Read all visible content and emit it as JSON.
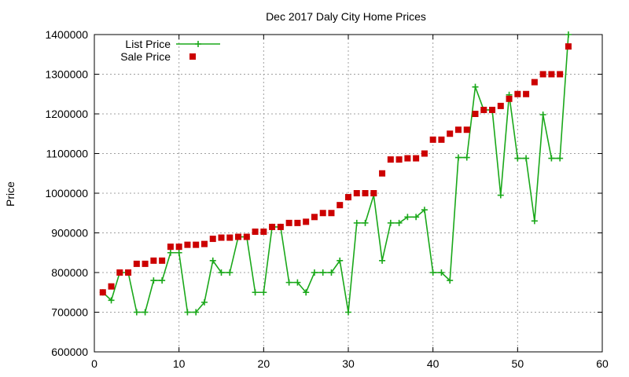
{
  "chart_data": {
    "type": "line",
    "title": "Dec 2017 Daly City Home Prices",
    "xlabel": "",
    "ylabel": "Price",
    "xlim": [
      0,
      60
    ],
    "ylim": [
      600000,
      1400000
    ],
    "xticks": [
      "0",
      "10",
      "20",
      "30",
      "40",
      "50",
      "60"
    ],
    "yticks": [
      "600000",
      "700000",
      "800000",
      "900000",
      "1000000",
      "1100000",
      "1200000",
      "1300000",
      "1400000"
    ],
    "grid": true,
    "legend_position": "top-left",
    "x": [
      1,
      2,
      3,
      4,
      5,
      6,
      7,
      8,
      9,
      10,
      11,
      12,
      13,
      14,
      15,
      16,
      17,
      18,
      19,
      20,
      21,
      22,
      23,
      24,
      25,
      26,
      27,
      28,
      29,
      30,
      31,
      32,
      33,
      34,
      35,
      36,
      37,
      38,
      39,
      40,
      41,
      42,
      43,
      44,
      45,
      46,
      47,
      48,
      49,
      50,
      51,
      52,
      53,
      54,
      55,
      56
    ],
    "series": [
      {
        "name": "List Price",
        "style": "line-plus",
        "color": "#1aa81a",
        "values": [
          750000,
          730000,
          800000,
          800000,
          700000,
          700000,
          780000,
          780000,
          850000,
          850000,
          700000,
          700000,
          725000,
          830000,
          800000,
          800000,
          890000,
          890000,
          750000,
          750000,
          915000,
          915000,
          775000,
          775000,
          750000,
          800000,
          800000,
          800000,
          830000,
          700000,
          925000,
          925000,
          995000,
          830000,
          925000,
          925000,
          940000,
          940000,
          958000,
          800000,
          800000,
          780000,
          1090000,
          1090000,
          1268000,
          1210000,
          1210000,
          995000,
          1248000,
          1088000,
          1088000,
          930000,
          1198000,
          1088000,
          1088000,
          1400000
        ]
      },
      {
        "name": "Sale Price",
        "style": "square",
        "color": "#cc0000",
        "values": [
          750000,
          765000,
          800000,
          800000,
          822000,
          822000,
          830000,
          830000,
          865000,
          865000,
          870000,
          870000,
          872000,
          885000,
          888000,
          888000,
          890000,
          890000,
          903000,
          903000,
          915000,
          915000,
          925000,
          925000,
          928000,
          940000,
          950000,
          950000,
          970000,
          990000,
          1000000,
          1000000,
          1000000,
          1050000,
          1085000,
          1085000,
          1088000,
          1088000,
          1100000,
          1135000,
          1135000,
          1150000,
          1160000,
          1160000,
          1200000,
          1210000,
          1210000,
          1220000,
          1238000,
          1250000,
          1250000,
          1280000,
          1300000,
          1300000,
          1300000,
          1370000
        ]
      }
    ]
  }
}
